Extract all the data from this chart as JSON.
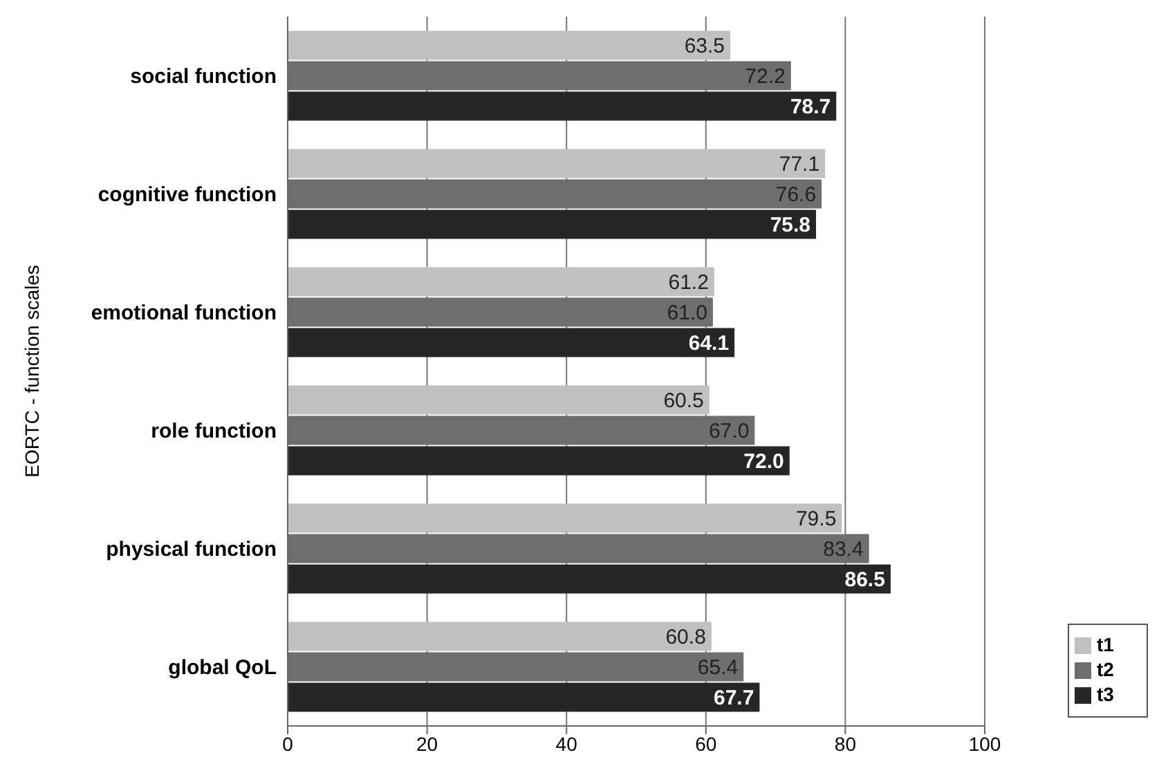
{
  "chart_data": {
    "type": "bar",
    "orientation": "horizontal",
    "ylabel": "EORTC - function scales",
    "categories": [
      "social function",
      "cognitive function",
      "emotional function",
      "role function",
      "physical function",
      "global QoL"
    ],
    "series": [
      {
        "name": "t1",
        "color": "#c0c0c0",
        "values": [
          63.5,
          77.1,
          61.2,
          60.5,
          79.5,
          60.8
        ],
        "value_labels": [
          "63.5",
          "77.1",
          "61.2",
          "60.5",
          "79.5",
          "60.8"
        ]
      },
      {
        "name": "t2",
        "color": "#6e6e6e",
        "values": [
          72.2,
          76.6,
          61.0,
          67.0,
          83.4,
          65.4
        ],
        "value_labels": [
          "72.2",
          "76.6",
          "61.0",
          "67.0",
          "83.4",
          "65.4"
        ]
      },
      {
        "name": "t3",
        "color": "#262626",
        "values": [
          78.7,
          75.8,
          64.1,
          72.0,
          86.5,
          67.7
        ],
        "value_labels": [
          "78.7",
          "75.8",
          "64.1",
          "72.0",
          "86.5",
          "67.7"
        ]
      }
    ],
    "xlim": [
      0,
      100
    ],
    "xticks": [
      0,
      20,
      40,
      60,
      80,
      100
    ],
    "grid": "x",
    "legend": "bottom right"
  }
}
